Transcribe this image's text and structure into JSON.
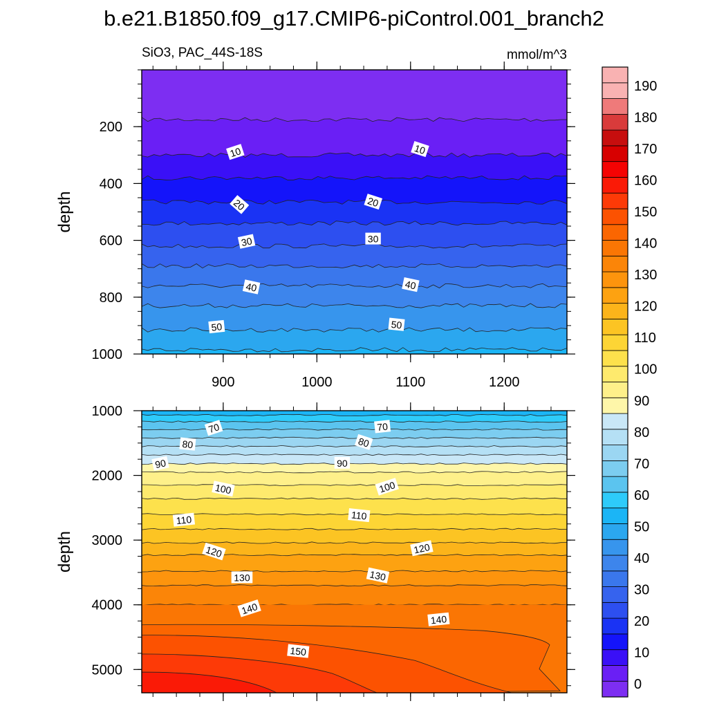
{
  "chart_data": {
    "type": "contour",
    "title": "b.e21.B1850.f09_g17.CMIP6-piControl.001_branch2",
    "left_string": "SiO3, PAC_44S-18S",
    "right_string": "mmol/m^3",
    "colors": {
      "blue_ramp": [
        "#7d2ef2",
        "#6a1ff5",
        "#3a10f7",
        "#1414fa",
        "#1a33f4",
        "#2d4ff0",
        "#3663ee",
        "#3a77ec",
        "#3d85ec",
        "#3795ed",
        "#2ba7ef",
        "#1bb5f6",
        "#2ecbfa",
        "#5bc4ef",
        "#7ccdf0",
        "#9bd6f2",
        "#b5e0f5",
        "#c9e7f7"
      ],
      "warm_ramp": [
        "#fef6a9",
        "#fef08a",
        "#feea6d",
        "#fde14c",
        "#fdd535",
        "#fcc423",
        "#fcb41a",
        "#fda211",
        "#fd940d",
        "#fb8508",
        "#fa7604",
        "#fb6601",
        "#fc5201",
        "#fd3a07",
        "#fa1a06",
        "#f50303",
        "#d70000",
        "#c70e0e",
        "#d93b3b",
        "#ef7a7a",
        "#f9b2b2"
      ]
    },
    "panels": [
      {
        "name": "upper-ocean",
        "xlim": [
          813,
          1267
        ],
        "ylim": [
          1000,
          0
        ],
        "xticks": [
          900,
          1000,
          1100,
          1200
        ],
        "xtick_labels": [
          "900",
          "1000",
          "1100",
          "1200"
        ],
        "yticks": [
          200,
          400,
          600,
          800,
          1000
        ],
        "ytick_labels": [
          "200",
          "400",
          "600",
          "800",
          "1000"
        ],
        "ylabel": "depth",
        "contour_depths": [
          [
            0,
            0
          ],
          [
            5,
            175
          ],
          [
            10,
            300
          ],
          [
            15,
            380
          ],
          [
            20,
            465
          ],
          [
            25,
            540
          ],
          [
            30,
            620
          ],
          [
            35,
            690
          ],
          [
            40,
            760
          ],
          [
            45,
            830
          ],
          [
            50,
            915
          ],
          [
            55,
            985
          ]
        ],
        "contour_labels": [
          {
            "text": "10",
            "x": 913,
            "d": 290
          },
          {
            "text": "10",
            "x": 1110,
            "d": 280
          },
          {
            "text": "20",
            "x": 917,
            "d": 475
          },
          {
            "text": "20",
            "x": 1060,
            "d": 465
          },
          {
            "text": "30",
            "x": 925,
            "d": 605
          },
          {
            "text": "30",
            "x": 1060,
            "d": 595
          },
          {
            "text": "40",
            "x": 930,
            "d": 765
          },
          {
            "text": "40",
            "x": 1100,
            "d": 757
          },
          {
            "text": "50",
            "x": 893,
            "d": 905
          },
          {
            "text": "50",
            "x": 1085,
            "d": 897
          }
        ]
      },
      {
        "name": "deep-ocean",
        "xlim": [
          813,
          1267
        ],
        "ylim": [
          5360,
          1000
        ],
        "xticks": [
          900,
          1000,
          1100,
          1200
        ],
        "yticks": [
          1000,
          2000,
          3000,
          4000,
          5000
        ],
        "ytick_labels": [
          "1000",
          "2000",
          "3000",
          "4000",
          "5000"
        ],
        "ylabel": "depth",
        "contour_depths": [
          [
            55,
            1000
          ],
          [
            60,
            1070
          ],
          [
            65,
            1170
          ],
          [
            70,
            1290
          ],
          [
            75,
            1420
          ],
          [
            80,
            1550
          ],
          [
            85,
            1680
          ],
          [
            90,
            1820
          ],
          [
            95,
            1950
          ],
          [
            100,
            2150
          ],
          [
            105,
            2360
          ],
          [
            110,
            2600
          ],
          [
            115,
            2830
          ],
          [
            120,
            3040
          ],
          [
            125,
            3230
          ],
          [
            130,
            3480
          ],
          [
            135,
            3700
          ],
          [
            140,
            4000
          ]
        ],
        "contour_labels": [
          {
            "text": "70",
            "x": 890,
            "d": 1270
          },
          {
            "text": "70",
            "x": 1070,
            "d": 1250
          },
          {
            "text": "80",
            "x": 862,
            "d": 1520
          },
          {
            "text": "80",
            "x": 1050,
            "d": 1490
          },
          {
            "text": "90",
            "x": 833,
            "d": 1820
          },
          {
            "text": "90",
            "x": 1027,
            "d": 1810
          },
          {
            "text": "100",
            "x": 900,
            "d": 2210
          },
          {
            "text": "100",
            "x": 1075,
            "d": 2180
          },
          {
            "text": "110",
            "x": 858,
            "d": 2690
          },
          {
            "text": "110",
            "x": 1045,
            "d": 2620
          },
          {
            "text": "120",
            "x": 890,
            "d": 3180
          },
          {
            "text": "120",
            "x": 1112,
            "d": 3130
          },
          {
            "text": "130",
            "x": 920,
            "d": 3580
          },
          {
            "text": "130",
            "x": 1065,
            "d": 3550
          },
          {
            "text": "140",
            "x": 928,
            "d": 4060
          },
          {
            "text": "140",
            "x": 1130,
            "d": 4230
          },
          {
            "text": "150",
            "x": 980,
            "d": 4720
          }
        ]
      }
    ],
    "colorbar": {
      "levels": [
        0,
        5,
        10,
        15,
        20,
        25,
        30,
        35,
        40,
        45,
        50,
        55,
        60,
        65,
        70,
        75,
        80,
        85,
        90,
        95,
        100,
        105,
        110,
        115,
        120,
        125,
        130,
        135,
        140,
        145,
        150,
        155,
        160,
        165,
        170,
        175,
        180,
        185,
        190,
        195
      ],
      "labels": [
        "0",
        "10",
        "20",
        "30",
        "40",
        "50",
        "60",
        "70",
        "80",
        "90",
        "100",
        "110",
        "120",
        "130",
        "140",
        "150",
        "160",
        "170",
        "180",
        "190"
      ],
      "label_values": [
        0,
        10,
        20,
        30,
        40,
        50,
        60,
        70,
        80,
        90,
        100,
        110,
        120,
        130,
        140,
        150,
        160,
        170,
        180,
        190
      ]
    }
  }
}
